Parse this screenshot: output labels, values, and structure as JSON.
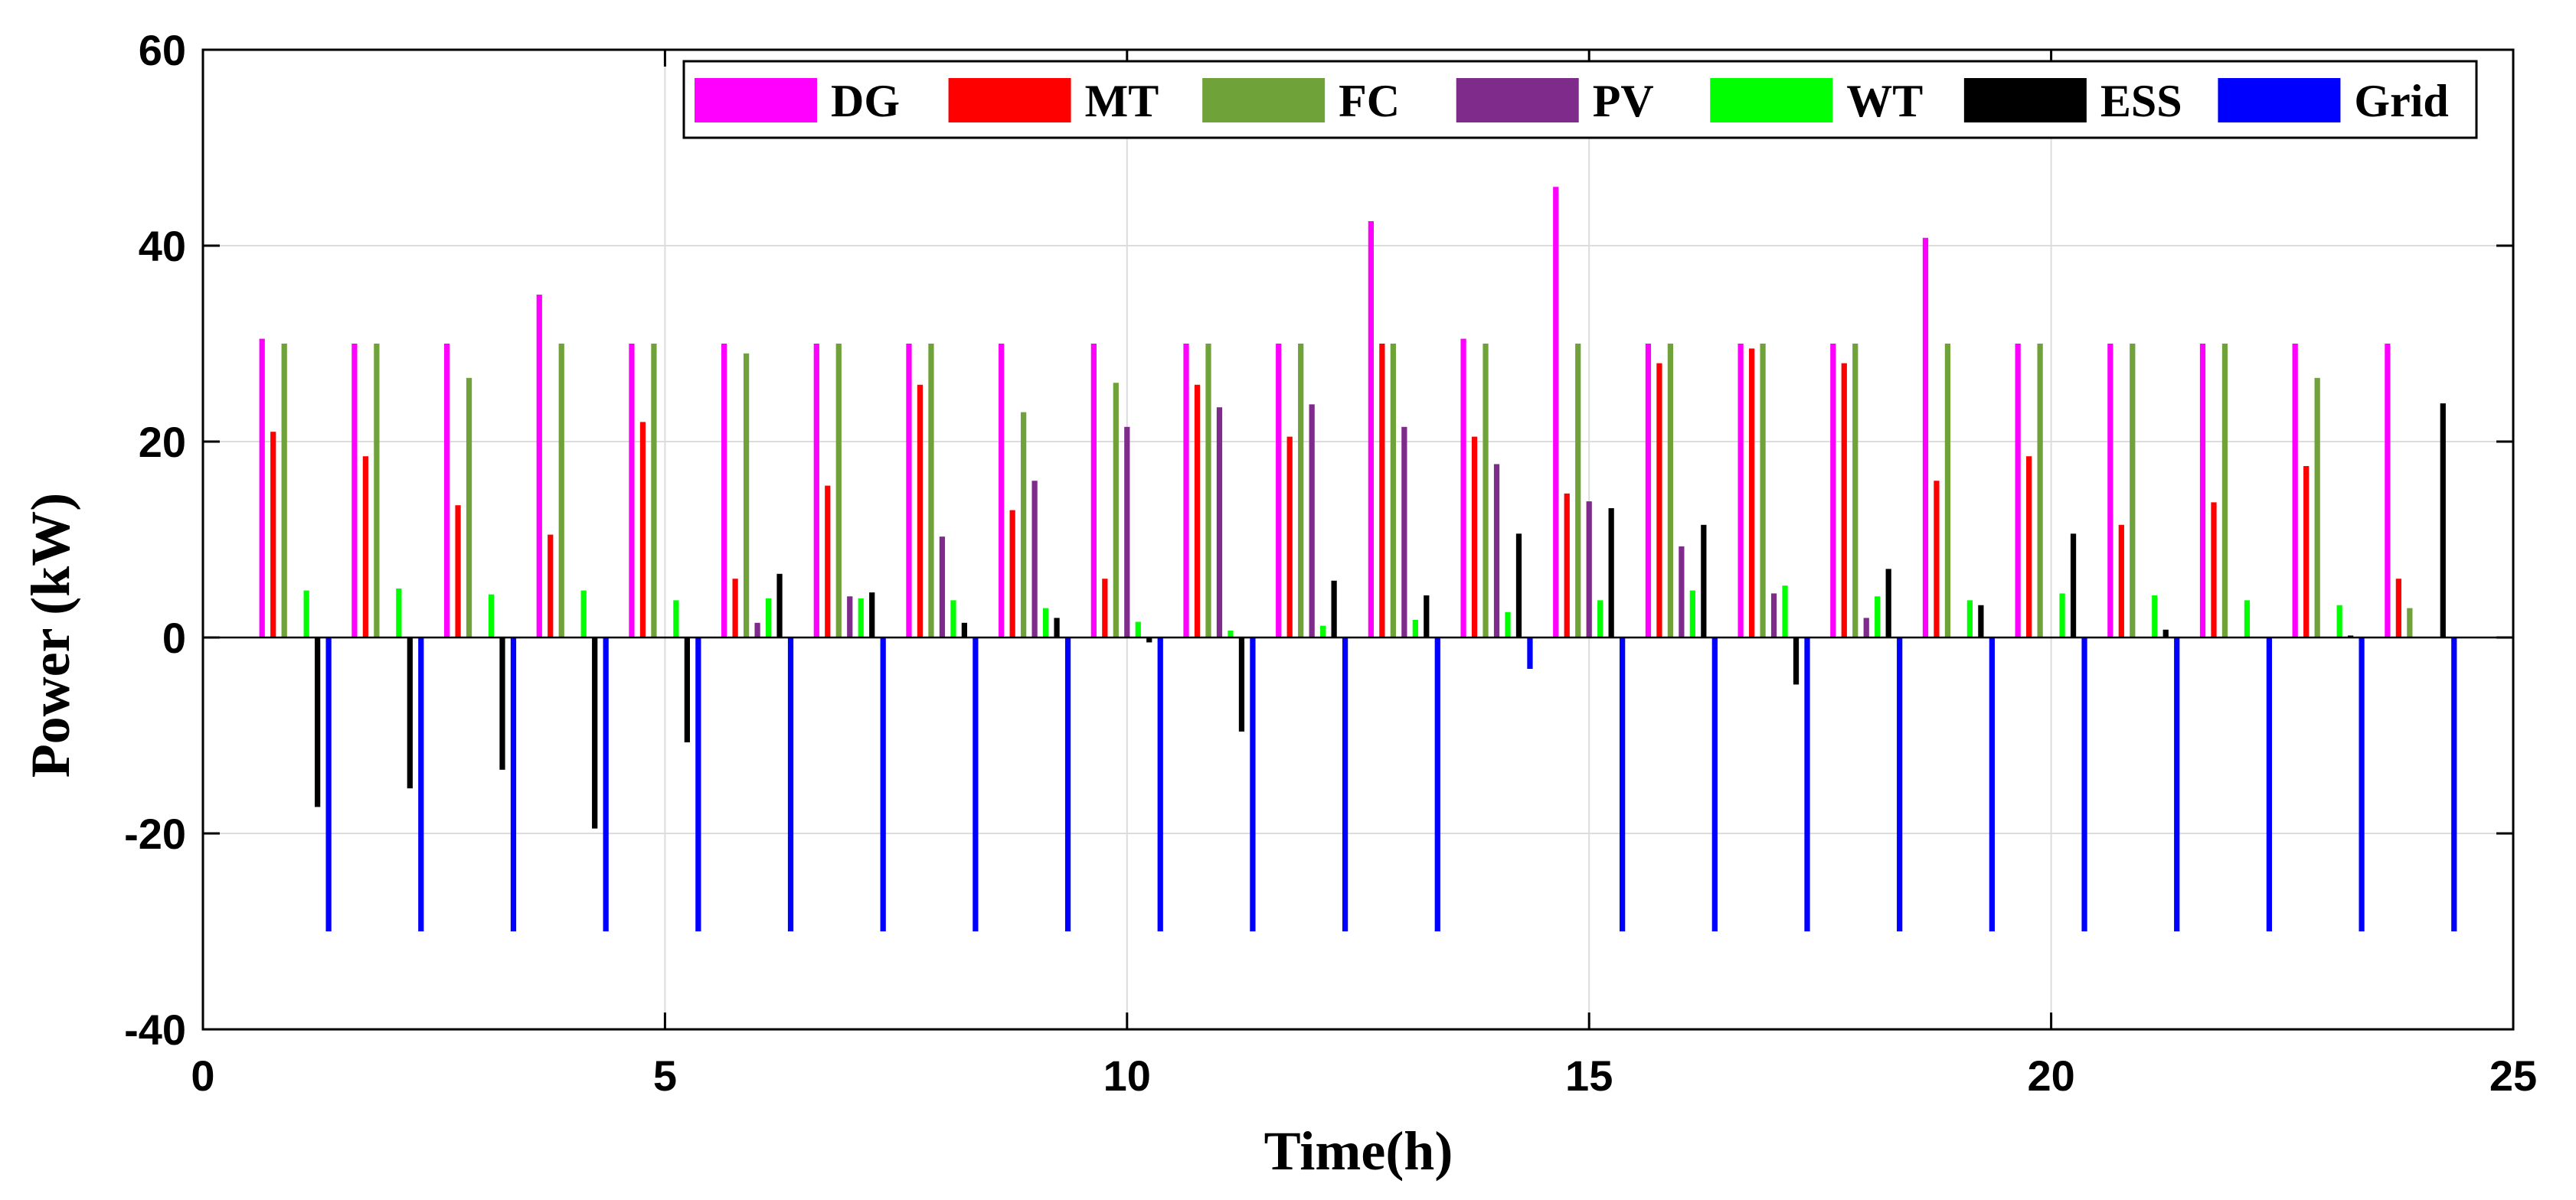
{
  "chart_data": {
    "type": "bar",
    "title": "",
    "xlabel": "Time(h)",
    "ylabel": "Power (kW)",
    "xlim": [
      0,
      25
    ],
    "ylim": [
      -40,
      60
    ],
    "xticks": [
      0,
      5,
      10,
      15,
      20,
      25
    ],
    "yticks": [
      -40,
      -20,
      0,
      20,
      40,
      60
    ],
    "grid": true,
    "legend_position": "top-right",
    "categories": [
      1,
      2,
      3,
      4,
      5,
      6,
      7,
      8,
      9,
      10,
      11,
      12,
      13,
      14,
      15,
      16,
      17,
      18,
      19,
      20,
      21,
      22,
      23,
      24
    ],
    "series": [
      {
        "name": "DG",
        "color": "#ff00ff",
        "values": [
          30.5,
          30,
          30,
          35,
          30,
          30,
          30,
          30,
          30,
          30,
          30,
          30,
          42.5,
          30.5,
          46,
          30,
          30,
          30,
          40.8,
          30,
          30,
          30,
          30,
          30
        ]
      },
      {
        "name": "MT",
        "color": "#ff0000",
        "values": [
          21,
          18.5,
          13.5,
          10.5,
          22,
          6,
          15.5,
          25.8,
          13,
          6,
          25.8,
          20.5,
          30,
          20.5,
          14.7,
          28,
          29.5,
          28,
          16,
          18.5,
          11.5,
          13.8,
          17.5,
          6
        ]
      },
      {
        "name": "FC",
        "color": "#70a23a",
        "values": [
          30,
          30,
          26.5,
          30,
          30,
          29,
          30,
          30,
          23,
          26,
          30,
          30,
          30,
          30,
          30,
          30,
          30,
          30,
          30,
          30,
          30,
          30,
          26.5,
          3
        ]
      },
      {
        "name": "PV",
        "color": "#7f2b8c",
        "values": [
          0,
          0,
          0,
          0,
          0,
          1.5,
          4.2,
          10.3,
          16,
          21.5,
          23.5,
          23.8,
          21.5,
          17.7,
          13.9,
          9.3,
          4.5,
          2,
          0,
          0,
          0,
          0,
          0,
          0
        ]
      },
      {
        "name": "WT",
        "color": "#00ff00",
        "values": [
          4.8,
          5,
          4.4,
          4.8,
          3.8,
          4,
          4,
          3.8,
          3,
          1.6,
          0.7,
          1.2,
          1.8,
          2.6,
          3.8,
          4.8,
          5.3,
          4.2,
          3.8,
          4.5,
          4.3,
          3.8,
          3.3,
          0
        ]
      },
      {
        "name": "ESS",
        "color": "#000000",
        "values": [
          -17.3,
          -15.4,
          -13.5,
          -19.5,
          -10.7,
          6.5,
          4.6,
          1.5,
          2,
          -0.5,
          -9.6,
          5.8,
          4.3,
          10.6,
          13.2,
          11.5,
          -4.8,
          7,
          3.3,
          10.6,
          0.8,
          0,
          0.2,
          23.9
        ]
      },
      {
        "name": "Grid",
        "color": "#0000ff",
        "values": [
          -30,
          -30,
          -30,
          -30,
          -30,
          -30,
          -30,
          -30,
          -30,
          -30,
          -30,
          -30,
          -30,
          -3.2,
          -30,
          -30,
          -30,
          -30,
          -30,
          -30,
          -30,
          -30,
          -30,
          -30
        ]
      }
    ]
  }
}
